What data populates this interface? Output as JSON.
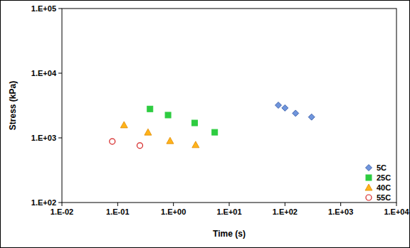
{
  "chart_data": {
    "type": "scatter",
    "x_label": "Time (s)",
    "y_label": "Stress (kPa)",
    "log": true,
    "grid": false,
    "legend": "right",
    "xlim": [
      0.01,
      10000
    ],
    "xticks": [
      {
        "value": 0.01,
        "label": "1.E-02"
      },
      {
        "value": 0.1,
        "label": "1.E-01"
      },
      {
        "value": 1,
        "label": "1.E+00"
      },
      {
        "value": 10,
        "label": "1.E+01"
      },
      {
        "value": 100,
        "label": "1.E+02"
      },
      {
        "value": 1000,
        "label": "1.E+03"
      },
      {
        "value": 10000,
        "label": "1.E+04"
      }
    ],
    "ylim": [
      100,
      100000
    ],
    "yticks": [
      {
        "value": 100,
        "label": "1.E+02"
      },
      {
        "value": 1000,
        "label": "1.E+03"
      },
      {
        "value": 10000,
        "label": "1.E+04"
      },
      {
        "value": 100000,
        "label": "1.E+05"
      }
    ],
    "series": [
      {
        "name": "5C",
        "color": "#6f95dc",
        "marker": "diamond",
        "x": [
          76,
          100,
          155,
          300
        ],
        "values": [
          3200,
          2900,
          2400,
          2100
        ]
      },
      {
        "name": "25C",
        "color": "#2ecc40",
        "marker": "square",
        "x": [
          0.38,
          0.8,
          2.4,
          5.5
        ],
        "values": [
          2800,
          2250,
          1700,
          1220
        ]
      },
      {
        "name": "40C",
        "color": "#ffb319",
        "marker": "triangle",
        "x": [
          0.13,
          0.35,
          0.87,
          2.5
        ],
        "values": [
          1580,
          1220,
          900,
          780
        ]
      },
      {
        "name": "55C",
        "color": "#d42020",
        "marker": "circle-open",
        "x": [
          0.08,
          0.25
        ],
        "values": [
          880,
          760
        ]
      }
    ]
  }
}
